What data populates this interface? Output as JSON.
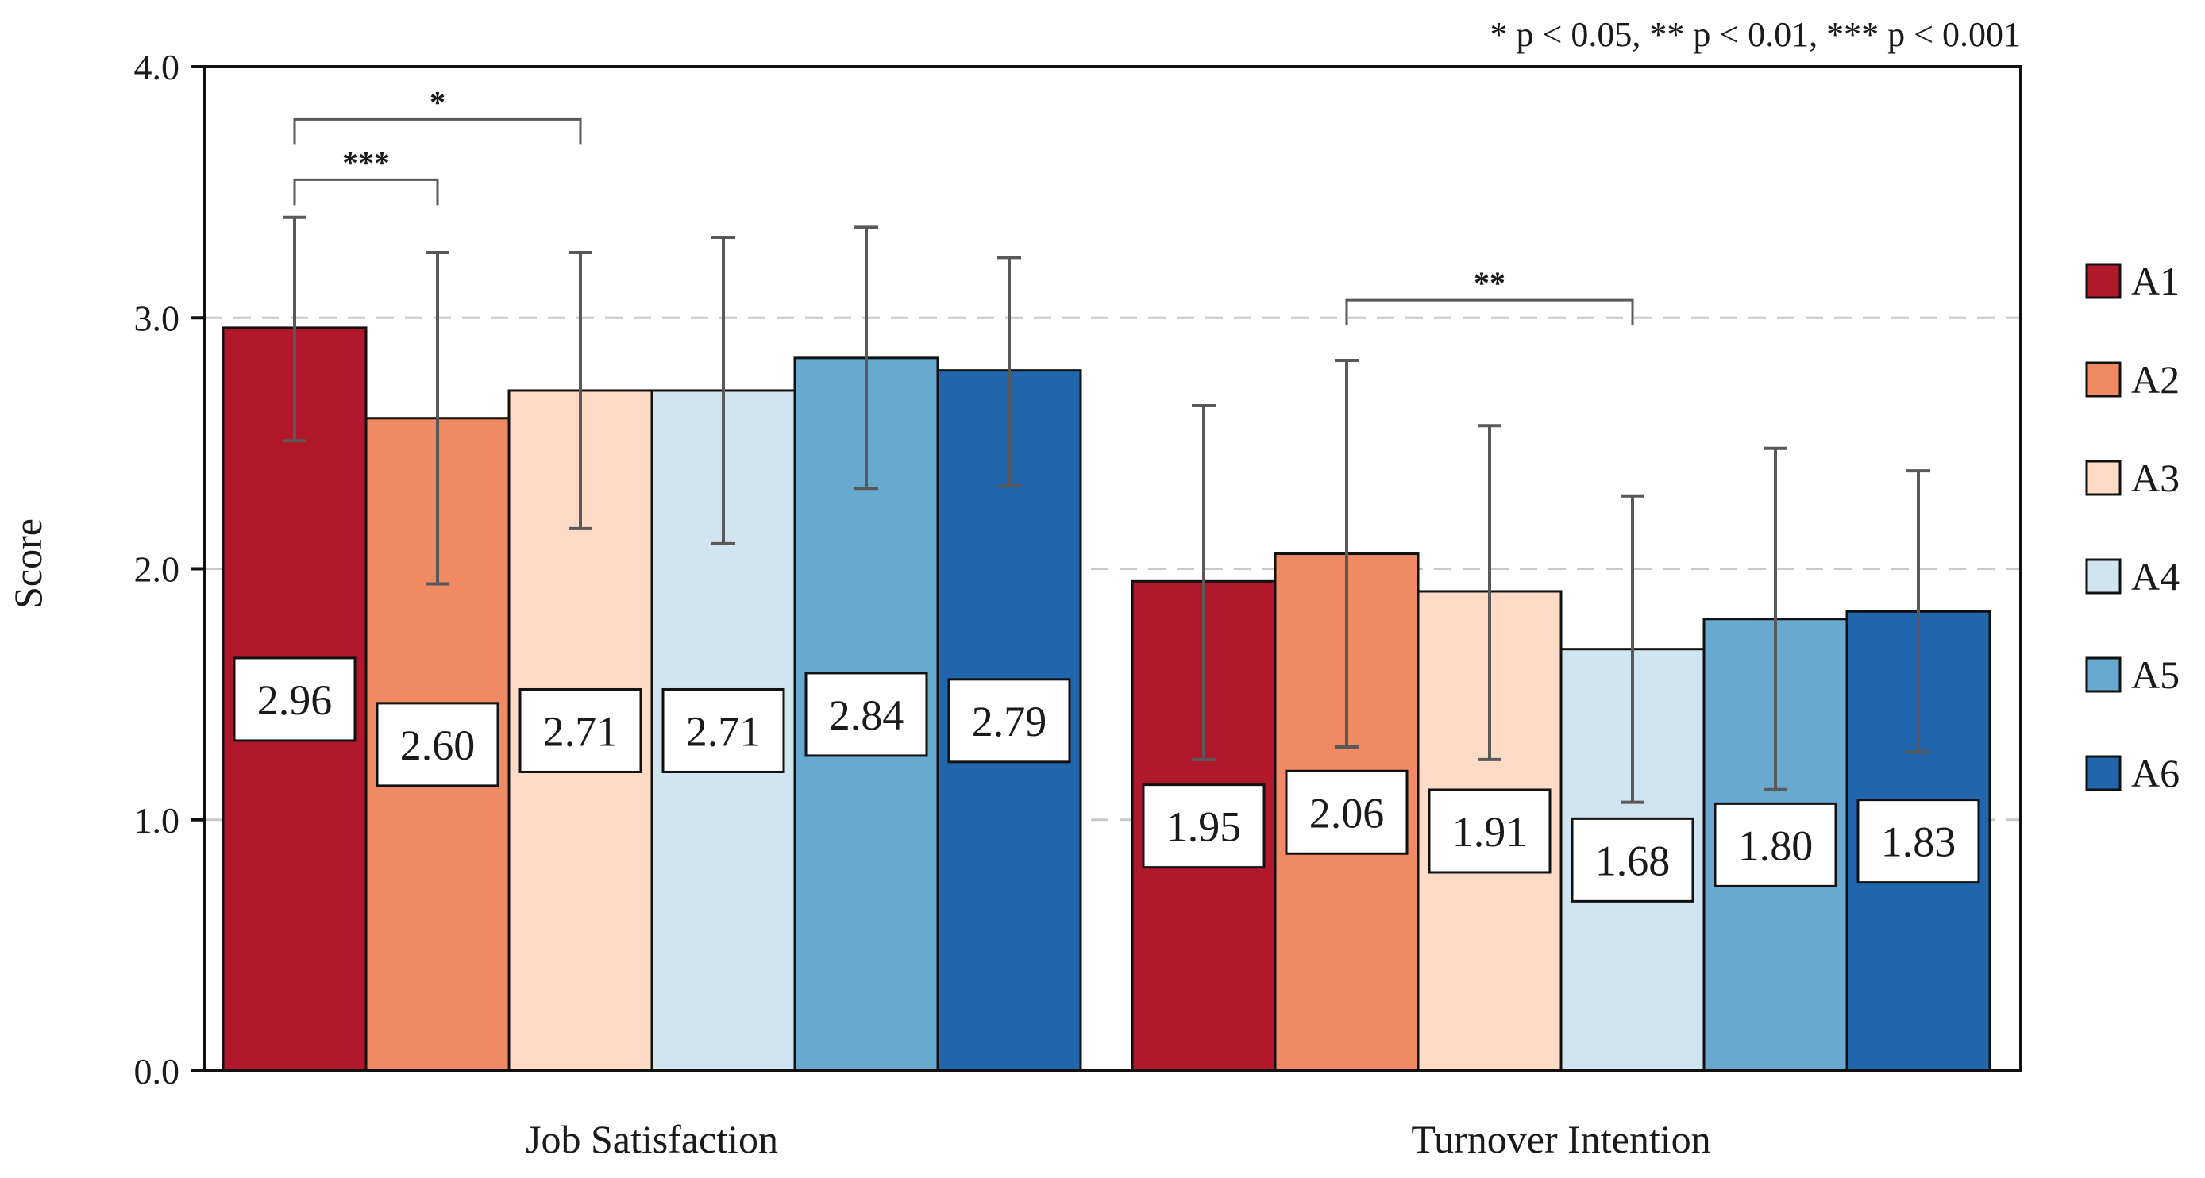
{
  "chart_data": {
    "type": "bar",
    "title": "",
    "xlabel": "",
    "ylabel": "Score",
    "ylim": [
      0,
      4
    ],
    "yticks": [
      0,
      1,
      2,
      3,
      4
    ],
    "ytick_labels": [
      "0.0",
      "1.0",
      "2.0",
      "3.0",
      "4.0"
    ],
    "gridlines": "dashed at 1.0, 2.0, 3.0",
    "legend_position": "right",
    "categories": [
      "Job Satisfaction",
      "Turnover Intention"
    ],
    "series": [
      {
        "name": "A1",
        "color": "#b2182b",
        "values": [
          2.96,
          1.95
        ],
        "labels": [
          "2.96",
          "1.95"
        ],
        "error_low": [
          2.51,
          1.24
        ],
        "error_high": [
          3.4,
          2.65
        ]
      },
      {
        "name": "A2",
        "color": "#ef8a62",
        "values": [
          2.6,
          2.06
        ],
        "labels": [
          "2.60",
          "2.06"
        ],
        "error_low": [
          1.94,
          1.29
        ],
        "error_high": [
          3.26,
          2.83
        ]
      },
      {
        "name": "A3",
        "color": "#fddbc7",
        "values": [
          2.71,
          1.91
        ],
        "labels": [
          "2.71",
          "1.91"
        ],
        "error_low": [
          2.16,
          1.24
        ],
        "error_high": [
          3.26,
          2.57
        ]
      },
      {
        "name": "A4",
        "color": "#d1e5f0",
        "values": [
          2.71,
          1.68
        ],
        "labels": [
          "2.71",
          "1.68"
        ],
        "error_low": [
          2.1,
          1.07
        ],
        "error_high": [
          3.32,
          2.29
        ]
      },
      {
        "name": "A5",
        "color": "#67a9cf",
        "values": [
          2.84,
          1.8
        ],
        "labels": [
          "2.84",
          "1.80"
        ],
        "error_low": [
          2.32,
          1.12
        ],
        "error_high": [
          3.36,
          2.48
        ]
      },
      {
        "name": "A6",
        "color": "#2166ac",
        "values": [
          2.79,
          1.83
        ],
        "labels": [
          "2.79",
          "1.83"
        ],
        "error_low": [
          2.33,
          1.27
        ],
        "error_high": [
          3.24,
          2.39
        ]
      }
    ],
    "significance": [
      {
        "category": 0,
        "from": "A1",
        "to": "A3",
        "label": "*",
        "level": 3.79
      },
      {
        "category": 0,
        "from": "A1",
        "to": "A2",
        "label": "***",
        "level": 3.55
      },
      {
        "category": 1,
        "from": "A2",
        "to": "A4",
        "label": "**",
        "level": 3.07
      }
    ],
    "annotation": "* p < 0.05, ** p < 0.01, *** p < 0.001"
  }
}
